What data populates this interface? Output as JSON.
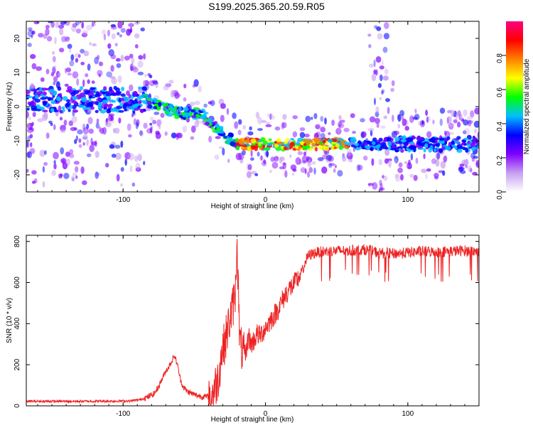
{
  "title": "S199.2025.365.20.59.R05",
  "chart_data": [
    {
      "type": "heatmap",
      "title": "S199.2025.365.20.59.R05",
      "xlabel": "Height of straight line (km)",
      "ylabel": "Frequency (Hz)",
      "xlim": [
        -168,
        150
      ],
      "ylim": [
        -25,
        25
      ],
      "x_ticks": [
        -100,
        0,
        100
      ],
      "y_ticks": [
        -20,
        -10,
        0,
        10,
        20
      ],
      "grid": false,
      "features": [
        {
          "label": "residual frequency trace",
          "x": [
            -168,
            -85,
            -60,
            -45,
            -30,
            -20,
            0,
            20,
            60,
            75,
            95,
            150
          ],
          "y": [
            2,
            2,
            -2,
            -2,
            -8,
            -11,
            -11,
            -11,
            -11,
            -11,
            -11,
            -11
          ]
        },
        {
          "label": "vertical band",
          "x": [
            80
          ],
          "y_range": [
            -25,
            25
          ]
        }
      ],
      "colorbar": {
        "label": "Normalized spectral amplitude",
        "range": [
          0,
          1
        ],
        "ticks": [
          "0.0",
          "0.2",
          "0.4",
          "0.6",
          "0.8"
        ],
        "tick_values": [
          0.0,
          0.2,
          0.4,
          0.6,
          0.8
        ],
        "colors": [
          "#ffffff",
          "#c8a0f0",
          "#8000ff",
          "#0000ff",
          "#00c0ff",
          "#00ff00",
          "#ffff00",
          "#ff8000",
          "#ff0000",
          "#ff0080"
        ]
      }
    },
    {
      "type": "line",
      "xlabel": "Height of straight line (km)",
      "ylabel": "SNR (10 * v/v)",
      "xlim": [
        -168,
        150
      ],
      "ylim": [
        0,
        830
      ],
      "x_ticks": [
        -100,
        0,
        100
      ],
      "y_ticks": [
        0,
        200,
        400,
        600,
        800
      ],
      "series": [
        {
          "name": "SNR",
          "color": "#ee2222",
          "x": [
            -168,
            -150,
            -130,
            -110,
            -95,
            -88,
            -82,
            -78,
            -75,
            -72,
            -70,
            -68,
            -66,
            -64,
            -62,
            -60,
            -58,
            -55,
            -50,
            -45,
            -40,
            -37,
            -35,
            -33,
            -31,
            -29,
            -27,
            -25,
            -23,
            -21,
            -20,
            -19,
            -18,
            -16,
            -14,
            -12,
            -10,
            -8,
            -6,
            -4,
            -2,
            0,
            2,
            5,
            8,
            11,
            14,
            17,
            20,
            23,
            26,
            28,
            30,
            35,
            40,
            50,
            60,
            70,
            80,
            90,
            100,
            110,
            120,
            130,
            140,
            150
          ],
          "y": [
            22,
            22,
            22,
            23,
            24,
            30,
            45,
            60,
            95,
            140,
            170,
            190,
            215,
            245,
            205,
            135,
            95,
            70,
            55,
            45,
            45,
            60,
            100,
            140,
            250,
            300,
            360,
            420,
            480,
            560,
            830,
            540,
            300,
            260,
            240,
            340,
            300,
            320,
            350,
            340,
            360,
            380,
            400,
            430,
            460,
            500,
            540,
            570,
            590,
            620,
            660,
            700,
            730,
            745,
            750,
            755,
            755,
            760,
            745,
            740,
            745,
            752,
            748,
            752,
            755,
            750
          ]
        }
      ]
    }
  ]
}
